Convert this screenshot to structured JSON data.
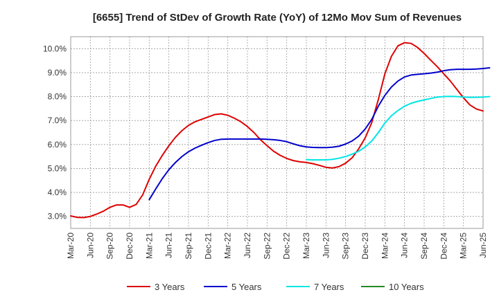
{
  "chart_data": {
    "type": "line",
    "title": "[6655]  Trend of StDev of Growth Rate (YoY) of 12Mo Mov Sum of Revenues",
    "xlabel": "",
    "ylabel": "",
    "ylim": [
      2.5,
      10.5
    ],
    "yticks": [
      3.0,
      4.0,
      5.0,
      6.0,
      7.0,
      8.0,
      9.0,
      10.0
    ],
    "ytick_labels": [
      "3.0%",
      "4.0%",
      "5.0%",
      "6.0%",
      "7.0%",
      "8.0%",
      "9.0%",
      "10.0%"
    ],
    "x_start": "2020-03",
    "x_end": "2025-06",
    "xtick_labels": [
      "Mar-20",
      "Jun-20",
      "Sep-20",
      "Dec-20",
      "Mar-21",
      "Jun-21",
      "Sep-21",
      "Dec-21",
      "Mar-22",
      "Jun-22",
      "Sep-22",
      "Dec-22",
      "Mar-23",
      "Jun-23",
      "Sep-23",
      "Dec-23",
      "Mar-24",
      "Jun-24",
      "Sep-24",
      "Dec-24",
      "Mar-25",
      "Jun-25"
    ],
    "grid": true,
    "legend_position": "bottom",
    "series": [
      {
        "name": "3 Years",
        "color": "#dd0000",
        "start_index": 0,
        "values": [
          3.02,
          2.96,
          2.95,
          3.0,
          3.1,
          3.22,
          3.38,
          3.48,
          3.48,
          3.38,
          3.5,
          3.9,
          4.55,
          5.1,
          5.55,
          5.95,
          6.3,
          6.58,
          6.8,
          6.95,
          7.05,
          7.15,
          7.25,
          7.28,
          7.22,
          7.1,
          6.95,
          6.75,
          6.5,
          6.2,
          5.95,
          5.72,
          5.55,
          5.42,
          5.33,
          5.28,
          5.25,
          5.2,
          5.13,
          5.05,
          5.02,
          5.08,
          5.22,
          5.45,
          5.82,
          6.28,
          6.92,
          7.88,
          8.95,
          9.68,
          10.12,
          10.25,
          10.22,
          10.05,
          9.8,
          9.52,
          9.25,
          8.95,
          8.65,
          8.3,
          7.95,
          7.65,
          7.48,
          7.4
        ]
      },
      {
        "name": "5 Years",
        "color": "#0000cc",
        "start_index": 12,
        "values": [
          3.7,
          4.15,
          4.58,
          4.95,
          5.25,
          5.5,
          5.7,
          5.85,
          5.97,
          6.08,
          6.17,
          6.22,
          6.23,
          6.23,
          6.23,
          6.23,
          6.23,
          6.23,
          6.22,
          6.2,
          6.17,
          6.12,
          6.03,
          5.95,
          5.9,
          5.88,
          5.87,
          5.87,
          5.89,
          5.93,
          6.02,
          6.15,
          6.35,
          6.65,
          7.05,
          7.6,
          8.05,
          8.4,
          8.65,
          8.82,
          8.9,
          8.93,
          8.95,
          8.98,
          9.02,
          9.08,
          9.12,
          9.14,
          9.14,
          9.14,
          9.15,
          9.17,
          9.2
        ]
      },
      {
        "name": "7 Years",
        "color": "#00e5e5",
        "start_index": 36,
        "values": [
          5.37,
          5.36,
          5.36,
          5.36,
          5.38,
          5.43,
          5.5,
          5.6,
          5.72,
          5.9,
          6.15,
          6.5,
          6.9,
          7.2,
          7.42,
          7.6,
          7.72,
          7.8,
          7.86,
          7.92,
          7.98,
          8.0,
          8.01,
          8.0,
          7.98,
          7.97,
          7.97,
          7.98,
          8.0
        ]
      },
      {
        "name": "10 Years",
        "color": "#228b22",
        "start_index": 0,
        "values": []
      }
    ]
  }
}
